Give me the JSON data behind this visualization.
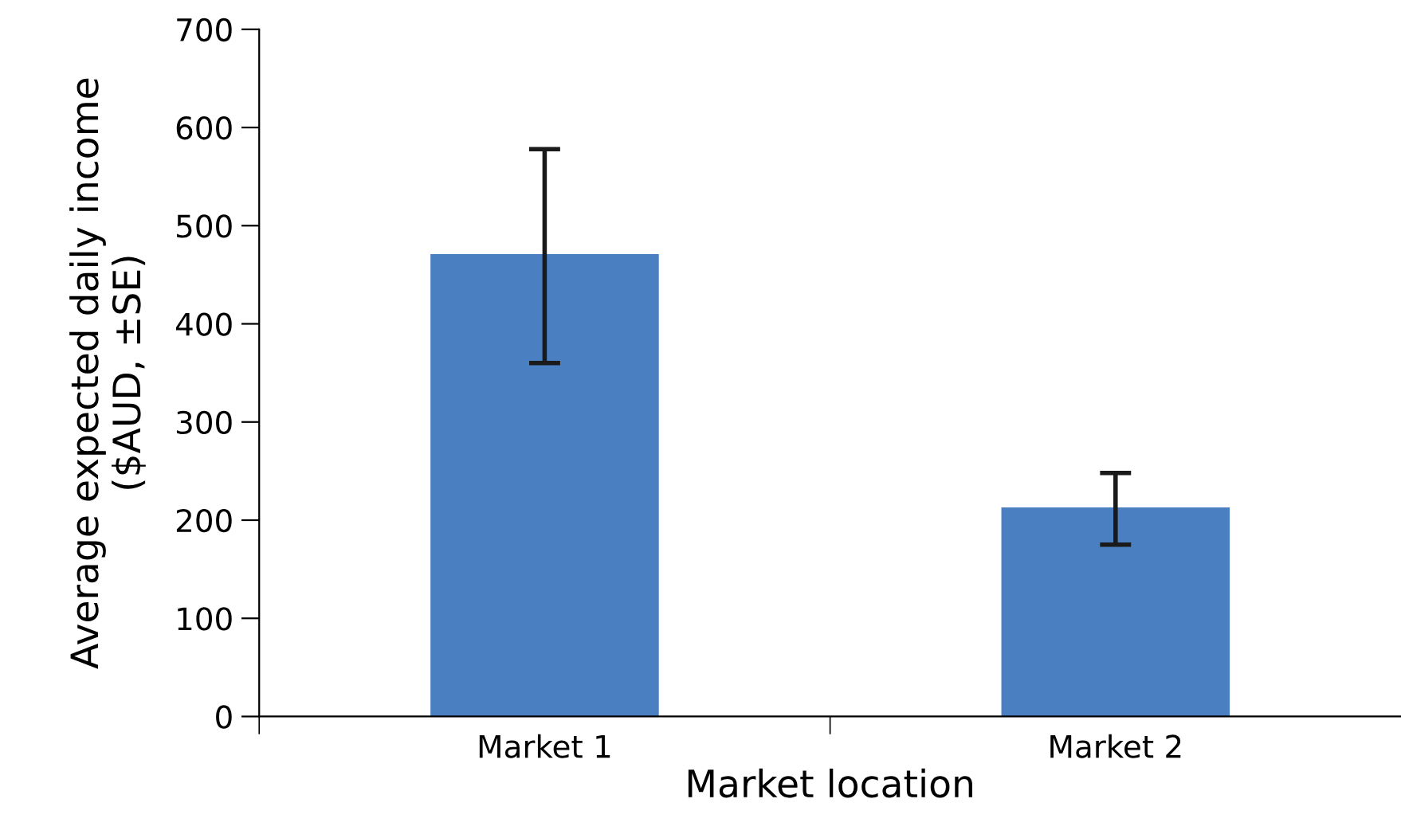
{
  "chart_data": {
    "type": "bar",
    "xlabel": "Market location",
    "ylabel": "Average expected daily income\n($AUD, ±SE)",
    "categories": [
      "Market 1",
      "Market 2"
    ],
    "series": [
      {
        "color": "#4a80c2",
        "values": [
          471,
          213
        ],
        "errors": [
          [
            360,
            578
          ],
          [
            175,
            248
          ]
        ]
      }
    ],
    "ylim": [
      0,
      700
    ],
    "yticks": [
      0,
      100,
      200,
      300,
      400,
      500,
      600,
      700
    ],
    "grid": false,
    "legend": false
  }
}
